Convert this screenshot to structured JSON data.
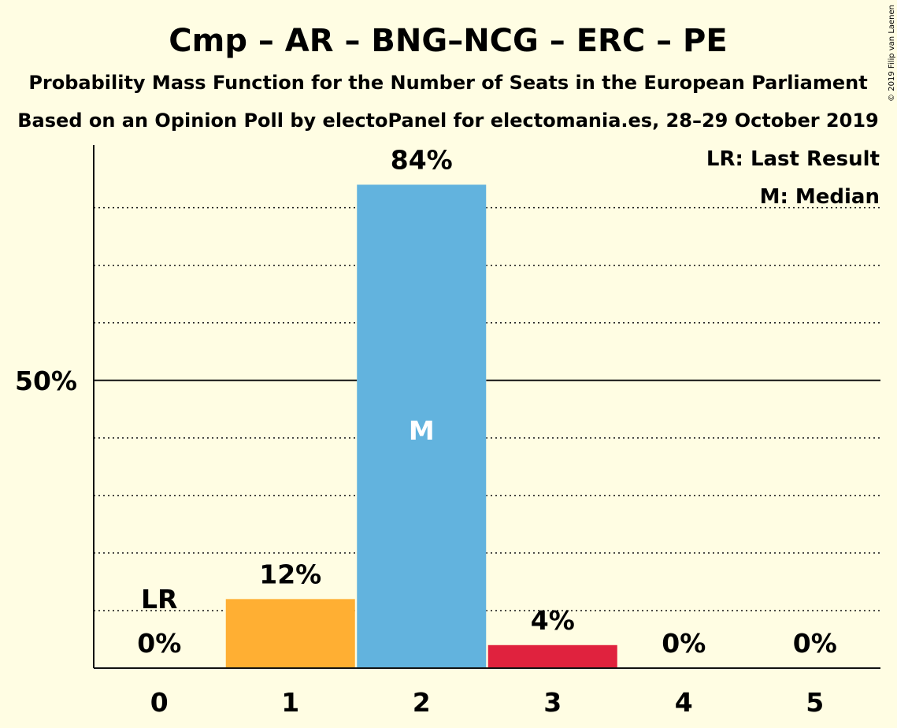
{
  "title": "Cmp – AR – BNG–NCG – ERC – PE",
  "subtitle_1": "Probability Mass Function for the Number of Seats in the European Parliament",
  "subtitle_2": "Based on an Opinion Poll by electoPanel for electomania.es, 28–29 October 2019",
  "copyright": "© 2019 Filip van Laenen",
  "legend": {
    "last_result": "LR: Last Result",
    "median": "M: Median"
  },
  "colors": {
    "background": "#FFFDE3",
    "orange": "#FFAF33",
    "blue": "#62B3DE",
    "red": "#E0223E"
  },
  "chart_data": {
    "type": "bar",
    "categories": [
      "0",
      "1",
      "2",
      "3",
      "4",
      "5"
    ],
    "values": [
      0,
      12,
      84,
      4,
      0,
      0
    ],
    "labels": [
      "0%",
      "12%",
      "84%",
      "4%",
      "0%",
      "0%"
    ],
    "bar_colors": [
      "#FFAF33",
      "#FFAF33",
      "#62B3DE",
      "#E0223E",
      "#E0223E",
      "#E0223E"
    ],
    "ylim": [
      0,
      92
    ],
    "yticks": [
      {
        "value": 50,
        "label": "50%"
      }
    ],
    "gridlines": [
      10,
      20,
      30,
      40,
      60,
      70,
      80
    ],
    "last_result_category": "0",
    "last_result_label": "LR",
    "median_category": "2",
    "median_label": "M",
    "xlabel": "",
    "ylabel": ""
  }
}
